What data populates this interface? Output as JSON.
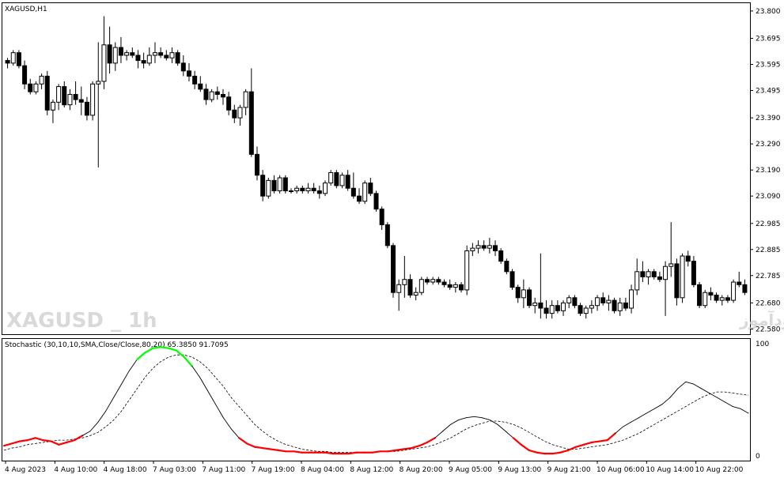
{
  "symbol_label": "XAGUSD,H1",
  "indicator_label": "Stochastic (30,10,10,SMA,Close/Close,80,20) 65.3850 91.7095",
  "watermark": {
    "title": "XAGUSD _ 1h",
    "subtitle": "انتشار در سایت سودآموز"
  },
  "colors": {
    "background": "#ffffff",
    "bull": "#ffffff",
    "bear": "#000000",
    "overbought": "#00ff00",
    "oversold": "#ff0000",
    "main_line": "#000000",
    "signal_line": "#000000"
  },
  "chart_data": [
    {
      "type": "candlestick",
      "title": "",
      "y_ticks": [
        "23.800",
        "23.695",
        "23.595",
        "23.495",
        "23.390",
        "23.290",
        "23.190",
        "23.090",
        "22.985",
        "22.885",
        "22.785",
        "22.680",
        "22.580"
      ],
      "ylim": [
        22.56,
        23.83
      ],
      "candles": [
        [
          23.61,
          23.62,
          23.58,
          23.6
        ],
        [
          23.6,
          23.65,
          23.59,
          23.64
        ],
        [
          23.64,
          23.65,
          23.58,
          23.59
        ],
        [
          23.59,
          23.61,
          23.5,
          23.52
        ],
        [
          23.52,
          23.54,
          23.48,
          23.49
        ],
        [
          23.49,
          23.53,
          23.48,
          23.52
        ],
        [
          23.52,
          23.56,
          23.5,
          23.55
        ],
        [
          23.55,
          23.57,
          23.4,
          23.42
        ],
        [
          23.42,
          23.46,
          23.37,
          23.45
        ],
        [
          23.45,
          23.52,
          23.42,
          23.51
        ],
        [
          23.51,
          23.53,
          23.43,
          23.44
        ],
        [
          23.44,
          23.5,
          23.42,
          23.48
        ],
        [
          23.48,
          23.53,
          23.44,
          23.46
        ],
        [
          23.46,
          23.51,
          23.4,
          23.45
        ],
        [
          23.45,
          23.47,
          23.38,
          23.4
        ],
        [
          23.4,
          23.53,
          23.38,
          23.52
        ],
        [
          23.52,
          23.68,
          23.2,
          23.53
        ],
        [
          23.53,
          23.78,
          23.5,
          23.67
        ],
        [
          23.67,
          23.74,
          23.56,
          23.6
        ],
        [
          23.6,
          23.68,
          23.57,
          23.66
        ],
        [
          23.66,
          23.7,
          23.6,
          23.63
        ],
        [
          23.63,
          23.65,
          23.61,
          23.64
        ],
        [
          23.64,
          23.66,
          23.62,
          23.63
        ],
        [
          23.63,
          23.65,
          23.58,
          23.61
        ],
        [
          23.61,
          23.64,
          23.58,
          23.6
        ],
        [
          23.6,
          23.66,
          23.59,
          23.63
        ],
        [
          23.63,
          23.68,
          23.6,
          23.64
        ],
        [
          23.64,
          23.66,
          23.62,
          23.63
        ],
        [
          23.63,
          23.65,
          23.61,
          23.62
        ],
        [
          23.62,
          23.66,
          23.6,
          23.64
        ],
        [
          23.64,
          23.65,
          23.59,
          23.6
        ],
        [
          23.6,
          23.63,
          23.55,
          23.57
        ],
        [
          23.57,
          23.6,
          23.53,
          23.55
        ],
        [
          23.55,
          23.57,
          23.5,
          23.52
        ],
        [
          23.52,
          23.55,
          23.49,
          23.5
        ],
        [
          23.5,
          23.52,
          23.44,
          23.46
        ],
        [
          23.46,
          23.5,
          23.45,
          23.49
        ],
        [
          23.49,
          23.51,
          23.46,
          23.48
        ],
        [
          23.48,
          23.5,
          23.44,
          23.47
        ],
        [
          23.47,
          23.49,
          23.4,
          23.42
        ],
        [
          23.42,
          23.44,
          23.37,
          23.39
        ],
        [
          23.39,
          23.44,
          23.36,
          23.43
        ],
        [
          23.43,
          23.5,
          23.4,
          23.49
        ],
        [
          23.49,
          23.58,
          23.24,
          23.25
        ],
        [
          23.25,
          23.28,
          23.15,
          23.17
        ],
        [
          23.17,
          23.19,
          23.07,
          23.09
        ],
        [
          23.09,
          23.16,
          23.08,
          23.15
        ],
        [
          23.15,
          23.17,
          23.1,
          23.11
        ],
        [
          23.11,
          23.17,
          23.1,
          23.16
        ],
        [
          23.16,
          23.17,
          23.1,
          23.11
        ],
        [
          23.11,
          23.12,
          23.1,
          23.11
        ],
        [
          23.11,
          23.13,
          23.1,
          23.12
        ],
        [
          23.12,
          23.13,
          23.1,
          23.11
        ],
        [
          23.11,
          23.14,
          23.1,
          23.12
        ],
        [
          23.12,
          23.14,
          23.1,
          23.11
        ],
        [
          23.11,
          23.13,
          23.08,
          23.1
        ],
        [
          23.1,
          23.15,
          23.09,
          23.14
        ],
        [
          23.14,
          23.19,
          23.13,
          23.18
        ],
        [
          23.18,
          23.19,
          23.12,
          23.13
        ],
        [
          23.13,
          23.18,
          23.12,
          23.17
        ],
        [
          23.17,
          23.19,
          23.11,
          23.12
        ],
        [
          23.12,
          23.18,
          23.08,
          23.09
        ],
        [
          23.09,
          23.12,
          23.06,
          23.07
        ],
        [
          23.07,
          23.15,
          23.06,
          23.14
        ],
        [
          23.14,
          23.16,
          23.09,
          23.1
        ],
        [
          23.1,
          23.11,
          23.03,
          23.04
        ],
        [
          23.04,
          23.05,
          22.96,
          22.98
        ],
        [
          22.98,
          22.99,
          22.89,
          22.9
        ],
        [
          22.9,
          22.91,
          22.7,
          22.72
        ],
        [
          22.72,
          22.77,
          22.65,
          22.75
        ],
        [
          22.75,
          22.86,
          22.7,
          22.77
        ],
        [
          22.77,
          22.79,
          22.7,
          22.71
        ],
        [
          22.71,
          22.74,
          22.69,
          22.72
        ],
        [
          22.72,
          22.78,
          22.71,
          22.77
        ],
        [
          22.77,
          22.78,
          22.75,
          22.76
        ],
        [
          22.76,
          22.78,
          22.75,
          22.77
        ],
        [
          22.77,
          22.78,
          22.75,
          22.76
        ],
        [
          22.76,
          22.77,
          22.74,
          22.75
        ],
        [
          22.75,
          22.77,
          22.73,
          22.74
        ],
        [
          22.74,
          22.76,
          22.72,
          22.75
        ],
        [
          22.75,
          22.76,
          22.72,
          22.73
        ],
        [
          22.73,
          22.9,
          22.71,
          22.88
        ],
        [
          22.88,
          22.91,
          22.86,
          22.89
        ],
        [
          22.89,
          22.92,
          22.87,
          22.9
        ],
        [
          22.9,
          22.92,
          22.88,
          22.89
        ],
        [
          22.89,
          22.93,
          22.87,
          22.9
        ],
        [
          22.9,
          22.92,
          22.86,
          22.88
        ],
        [
          22.88,
          22.89,
          22.83,
          22.84
        ],
        [
          22.84,
          22.85,
          22.79,
          22.8
        ],
        [
          22.8,
          22.81,
          22.73,
          22.74
        ],
        [
          22.74,
          22.75,
          22.68,
          22.7
        ],
        [
          22.7,
          22.77,
          22.66,
          22.73
        ],
        [
          22.73,
          22.74,
          22.66,
          22.67
        ],
        [
          22.67,
          22.7,
          22.64,
          22.68
        ],
        [
          22.68,
          22.87,
          22.62,
          22.66
        ],
        [
          22.66,
          22.69,
          22.62,
          22.64
        ],
        [
          22.64,
          22.69,
          22.62,
          22.67
        ],
        [
          22.67,
          22.69,
          22.64,
          22.65
        ],
        [
          22.65,
          22.69,
          22.63,
          22.68
        ],
        [
          22.68,
          22.71,
          22.66,
          22.7
        ],
        [
          22.7,
          22.71,
          22.66,
          22.67
        ],
        [
          22.67,
          22.68,
          22.63,
          22.64
        ],
        [
          22.64,
          22.67,
          22.62,
          22.66
        ],
        [
          22.66,
          22.69,
          22.64,
          22.67
        ],
        [
          22.67,
          22.71,
          22.65,
          22.7
        ],
        [
          22.7,
          22.72,
          22.67,
          22.68
        ],
        [
          22.68,
          22.71,
          22.65,
          22.69
        ],
        [
          22.69,
          22.7,
          22.64,
          22.65
        ],
        [
          22.65,
          22.7,
          22.63,
          22.68
        ],
        [
          22.68,
          22.7,
          22.65,
          22.66
        ],
        [
          22.66,
          22.75,
          22.64,
          22.73
        ],
        [
          22.73,
          22.85,
          22.71,
          22.8
        ],
        [
          22.8,
          22.84,
          22.76,
          22.78
        ],
        [
          22.78,
          22.81,
          22.75,
          22.8
        ],
        [
          22.8,
          22.81,
          22.77,
          22.78
        ],
        [
          22.78,
          22.8,
          22.76,
          22.77
        ],
        [
          22.77,
          22.84,
          22.63,
          22.82
        ],
        [
          22.82,
          22.99,
          22.78,
          22.83
        ],
        [
          22.83,
          22.85,
          22.67,
          22.7
        ],
        [
          22.7,
          22.87,
          22.68,
          22.86
        ],
        [
          22.86,
          22.88,
          22.82,
          22.84
        ],
        [
          22.84,
          22.86,
          22.74,
          22.75
        ],
        [
          22.75,
          22.76,
          22.66,
          22.67
        ],
        [
          22.67,
          22.73,
          22.66,
          22.72
        ],
        [
          22.72,
          22.74,
          22.69,
          22.71
        ],
        [
          22.71,
          22.72,
          22.68,
          22.69
        ],
        [
          22.69,
          22.71,
          22.67,
          22.7
        ],
        [
          22.7,
          22.71,
          22.68,
          22.69
        ],
        [
          22.69,
          22.77,
          22.68,
          22.76
        ],
        [
          22.76,
          22.8,
          22.74,
          22.75
        ],
        [
          22.75,
          22.77,
          22.71,
          22.72
        ]
      ]
    },
    {
      "type": "line",
      "title": "",
      "ylim": [
        0,
        100
      ],
      "y_ticks": [
        "100",
        "0"
      ],
      "levels": [
        80,
        20
      ],
      "x_labels": [
        "4 Aug 2023",
        "4 Aug 10:00",
        "4 Aug 18:00",
        "7 Aug 03:00",
        "7 Aug 11:00",
        "7 Aug 19:00",
        "8 Aug 04:00",
        "8 Aug 12:00",
        "8 Aug 20:00",
        "9 Aug 05:00",
        "9 Aug 13:00",
        "9 Aug 21:00",
        "10 Aug 06:00",
        "10 Aug 14:00",
        "10 Aug 22:00"
      ],
      "series": [
        {
          "values": [
            9,
            11,
            13,
            14,
            16,
            14,
            13,
            10,
            12,
            14,
            18,
            22,
            30,
            40,
            52,
            64,
            76,
            86,
            92,
            96,
            97,
            96,
            94,
            88,
            80,
            70,
            58,
            46,
            34,
            24,
            16,
            11,
            8,
            7,
            6,
            5,
            4,
            4,
            3,
            3,
            3,
            3,
            2,
            2,
            2,
            3,
            3,
            3,
            4,
            4,
            5,
            6,
            7,
            9,
            12,
            16,
            22,
            28,
            32,
            34,
            35,
            34,
            32,
            28,
            22,
            16,
            10,
            5,
            3,
            2,
            2,
            3,
            5,
            8,
            10,
            12,
            13,
            14,
            20,
            26,
            30,
            34,
            38,
            42,
            46,
            52,
            60,
            66,
            64,
            60,
            56,
            52,
            48,
            44,
            42,
            38
          ]
        },
        {
          "values": [
            5,
            7,
            8,
            10,
            11,
            12,
            13,
            14,
            14,
            15,
            16,
            18,
            21,
            26,
            32,
            40,
            50,
            60,
            70,
            78,
            84,
            88,
            90,
            90,
            88,
            84,
            78,
            70,
            62,
            52,
            44,
            36,
            28,
            22,
            17,
            13,
            10,
            8,
            6,
            5,
            4,
            4,
            3,
            3,
            3,
            3,
            3,
            3,
            4,
            4,
            4,
            5,
            6,
            7,
            8,
            10,
            13,
            16,
            20,
            24,
            27,
            29,
            31,
            31,
            30,
            28,
            25,
            21,
            17,
            13,
            10,
            8,
            6,
            6,
            7,
            8,
            9,
            10,
            12,
            14,
            17,
            20,
            24,
            28,
            32,
            36,
            40,
            44,
            48,
            52,
            55,
            57,
            57,
            56,
            55,
            54
          ]
        }
      ]
    }
  ]
}
